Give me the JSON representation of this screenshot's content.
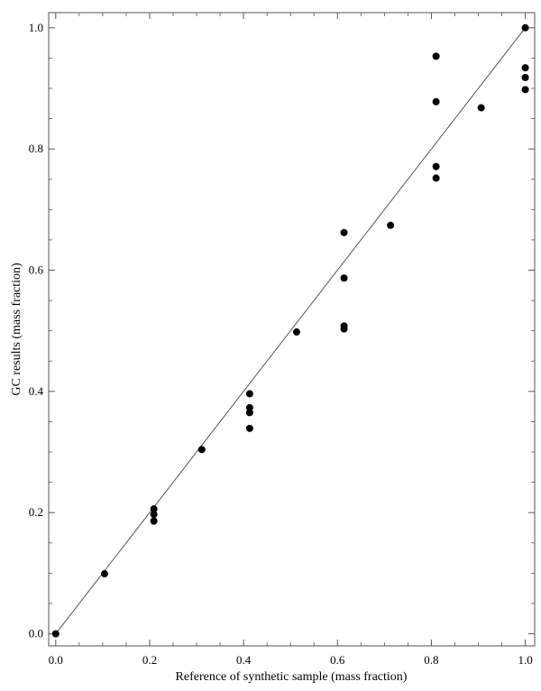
{
  "chart_data": {
    "type": "scatter",
    "title": "",
    "xlabel": "Reference of synthetic sample (mass fraction)",
    "ylabel": "GC results (mass fraction)",
    "xlim": [
      -0.015,
      1.02
    ],
    "ylim": [
      -0.02,
      1.025
    ],
    "x_ticks": [
      "0.0",
      "0.2",
      "0.4",
      "0.6",
      "0.8",
      "1.0"
    ],
    "y_ticks": [
      "0.0",
      "0.2",
      "0.4",
      "0.6",
      "0.8",
      "1.0"
    ],
    "grid": false,
    "legend": "none",
    "reference_line": {
      "x": [
        0.0,
        1.0
      ],
      "y": [
        0.0,
        1.0
      ]
    },
    "series": [
      {
        "points": [
          [
            0.0,
            0.0
          ],
          [
            0.104,
            0.099
          ],
          [
            0.209,
            0.206
          ],
          [
            0.209,
            0.197
          ],
          [
            0.209,
            0.186
          ],
          [
            0.311,
            0.304
          ],
          [
            0.413,
            0.396
          ],
          [
            0.413,
            0.373
          ],
          [
            0.413,
            0.365
          ],
          [
            0.413,
            0.339
          ],
          [
            0.513,
            0.498
          ],
          [
            0.614,
            0.662
          ],
          [
            0.614,
            0.587
          ],
          [
            0.614,
            0.508
          ],
          [
            0.614,
            0.503
          ],
          [
            0.713,
            0.674
          ],
          [
            0.81,
            0.953
          ],
          [
            0.81,
            0.878
          ],
          [
            0.81,
            0.771
          ],
          [
            0.81,
            0.752
          ],
          [
            0.906,
            0.868
          ],
          [
            1.0,
            1.0
          ],
          [
            1.0,
            0.934
          ],
          [
            1.0,
            0.918
          ],
          [
            1.0,
            0.898
          ]
        ]
      }
    ]
  }
}
